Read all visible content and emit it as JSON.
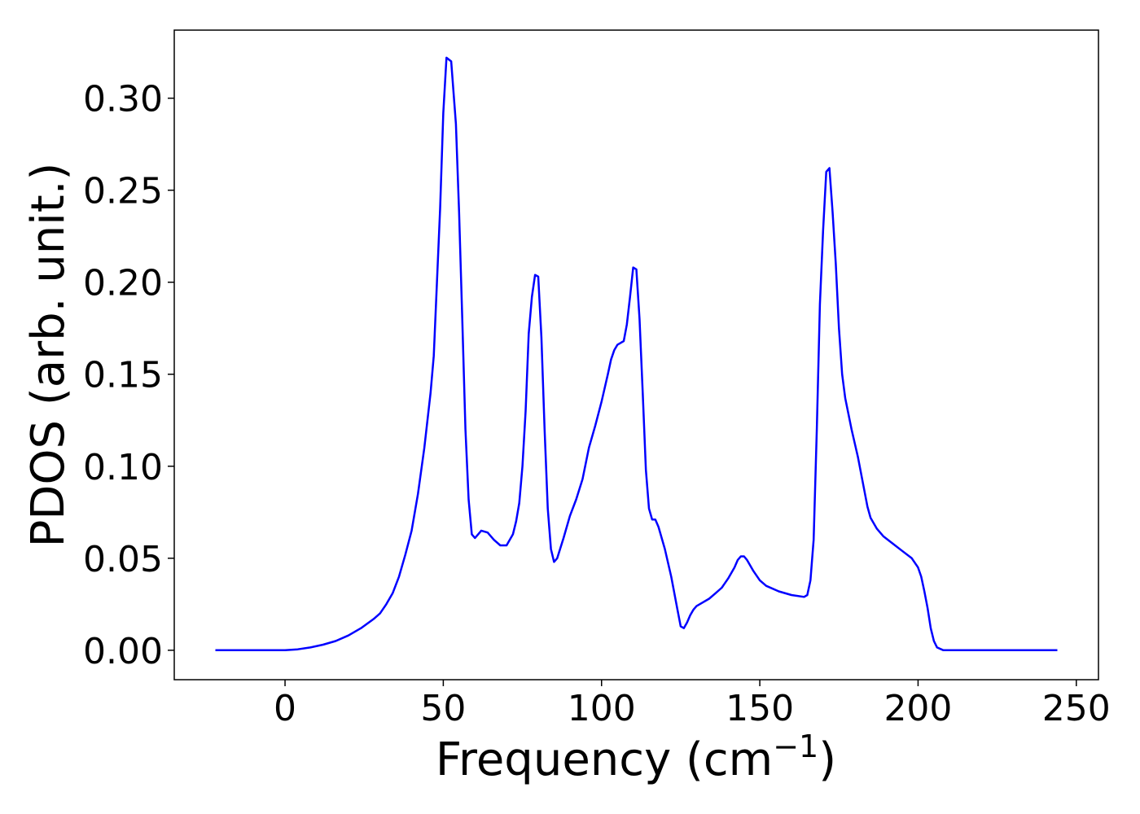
{
  "chart_data": {
    "type": "line",
    "title": "",
    "xlabel": "Frequency (cm",
    "xlabel_exponent": "−1",
    "xlabel_close": ")",
    "ylabel": "PDOS (arb. unit.)",
    "xlim": [
      -35,
      257
    ],
    "ylim": [
      -0.016,
      0.337
    ],
    "x_ticks": [
      0,
      50,
      100,
      150,
      200,
      250
    ],
    "x_tick_labels": [
      "0",
      "50",
      "100",
      "150",
      "200",
      "250"
    ],
    "y_ticks": [
      0.0,
      0.05,
      0.1,
      0.15,
      0.2,
      0.25,
      0.3
    ],
    "y_tick_labels": [
      "0.00",
      "0.05",
      "0.10",
      "0.15",
      "0.20",
      "0.25",
      "0.30"
    ],
    "grid": false,
    "legend": "none",
    "series": [
      {
        "color": "#0000ff",
        "points": [
          [
            -22,
            0.0
          ],
          [
            -10,
            0.0
          ],
          [
            0,
            0.0
          ],
          [
            4,
            0.0005
          ],
          [
            8,
            0.0015
          ],
          [
            12,
            0.003
          ],
          [
            16,
            0.005
          ],
          [
            20,
            0.008
          ],
          [
            24,
            0.012
          ],
          [
            28,
            0.017
          ],
          [
            30,
            0.02
          ],
          [
            32,
            0.025
          ],
          [
            34,
            0.031
          ],
          [
            36,
            0.04
          ],
          [
            38,
            0.052
          ],
          [
            40,
            0.065
          ],
          [
            42,
            0.085
          ],
          [
            44,
            0.11
          ],
          [
            46,
            0.14
          ],
          [
            47,
            0.16
          ],
          [
            48,
            0.2
          ],
          [
            49,
            0.24
          ],
          [
            50,
            0.292
          ],
          [
            51,
            0.322
          ],
          [
            52.5,
            0.32
          ],
          [
            54,
            0.286
          ],
          [
            55,
            0.238
          ],
          [
            56,
            0.18
          ],
          [
            57,
            0.12
          ],
          [
            58,
            0.082
          ],
          [
            59,
            0.063
          ],
          [
            60,
            0.061
          ],
          [
            61,
            0.063
          ],
          [
            62,
            0.065
          ],
          [
            64,
            0.064
          ],
          [
            66,
            0.06
          ],
          [
            68,
            0.057
          ],
          [
            70,
            0.057
          ],
          [
            72,
            0.063
          ],
          [
            73,
            0.07
          ],
          [
            74,
            0.08
          ],
          [
            75,
            0.1
          ],
          [
            76,
            0.13
          ],
          [
            77,
            0.172
          ],
          [
            78,
            0.192
          ],
          [
            79,
            0.204
          ],
          [
            80,
            0.203
          ],
          [
            81,
            0.17
          ],
          [
            82,
            0.12
          ],
          [
            83,
            0.077
          ],
          [
            84,
            0.055
          ],
          [
            85,
            0.048
          ],
          [
            86,
            0.05
          ],
          [
            88,
            0.061
          ],
          [
            90,
            0.073
          ],
          [
            92,
            0.082
          ],
          [
            94,
            0.093
          ],
          [
            96,
            0.11
          ],
          [
            98,
            0.122
          ],
          [
            100,
            0.135
          ],
          [
            102,
            0.15
          ],
          [
            103,
            0.158
          ],
          [
            104,
            0.163
          ],
          [
            105,
            0.166
          ],
          [
            106,
            0.167
          ],
          [
            107,
            0.168
          ],
          [
            108,
            0.177
          ],
          [
            109,
            0.192
          ],
          [
            110,
            0.208
          ],
          [
            111,
            0.207
          ],
          [
            112,
            0.18
          ],
          [
            113,
            0.14
          ],
          [
            114,
            0.098
          ],
          [
            115,
            0.077
          ],
          [
            116,
            0.071
          ],
          [
            117,
            0.071
          ],
          [
            118,
            0.067
          ],
          [
            120,
            0.055
          ],
          [
            122,
            0.04
          ],
          [
            124,
            0.022
          ],
          [
            125,
            0.013
          ],
          [
            126,
            0.012
          ],
          [
            127,
            0.015
          ],
          [
            128,
            0.019
          ],
          [
            129,
            0.022
          ],
          [
            130,
            0.024
          ],
          [
            132,
            0.026
          ],
          [
            134,
            0.028
          ],
          [
            136,
            0.031
          ],
          [
            138,
            0.034
          ],
          [
            140,
            0.039
          ],
          [
            142,
            0.045
          ],
          [
            143,
            0.049
          ],
          [
            144,
            0.051
          ],
          [
            145,
            0.051
          ],
          [
            146,
            0.049
          ],
          [
            148,
            0.043
          ],
          [
            150,
            0.038
          ],
          [
            152,
            0.035
          ],
          [
            156,
            0.032
          ],
          [
            160,
            0.03
          ],
          [
            164,
            0.029
          ],
          [
            165,
            0.03
          ],
          [
            166,
            0.038
          ],
          [
            167,
            0.06
          ],
          [
            168,
            0.12
          ],
          [
            169,
            0.188
          ],
          [
            170,
            0.228
          ],
          [
            171,
            0.26
          ],
          [
            172,
            0.262
          ],
          [
            173,
            0.238
          ],
          [
            174,
            0.21
          ],
          [
            175,
            0.175
          ],
          [
            176,
            0.15
          ],
          [
            177,
            0.137
          ],
          [
            179,
            0.12
          ],
          [
            181,
            0.105
          ],
          [
            183,
            0.087
          ],
          [
            184,
            0.078
          ],
          [
            185,
            0.072
          ],
          [
            187,
            0.066
          ],
          [
            189,
            0.062
          ],
          [
            192,
            0.058
          ],
          [
            195,
            0.054
          ],
          [
            198,
            0.05
          ],
          [
            200,
            0.045
          ],
          [
            201,
            0.04
          ],
          [
            202,
            0.032
          ],
          [
            203,
            0.023
          ],
          [
            204,
            0.012
          ],
          [
            205,
            0.005
          ],
          [
            206,
            0.0015
          ],
          [
            208,
            0.0
          ],
          [
            220,
            0.0
          ],
          [
            232,
            0.0
          ],
          [
            244,
            0.0
          ]
        ]
      }
    ]
  }
}
